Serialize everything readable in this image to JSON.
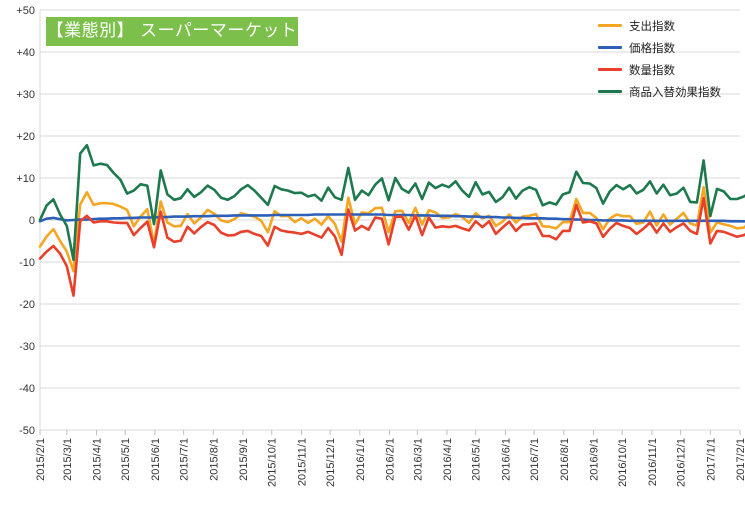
{
  "chart_data": {
    "type": "line",
    "title": "【業態別】 スーパーマーケット",
    "ylim": [
      -50,
      50
    ],
    "yticks": [
      50,
      40,
      30,
      20,
      10,
      0,
      -10,
      -20,
      -30,
      -40,
      -50
    ],
    "ytick_labels": [
      "+50",
      "+40",
      "+30",
      "+20",
      "+10",
      "0",
      "-10",
      "-20",
      "-30",
      "-40",
      "-50"
    ],
    "x": [
      "2015/2/1",
      "2015/2/8",
      "2015/2/15",
      "2015/2/22",
      "2015/3/1",
      "2015/3/8",
      "2015/3/15",
      "2015/3/22",
      "2015/3/29",
      "2015/4/5",
      "2015/4/12",
      "2015/4/19",
      "2015/4/26",
      "2015/5/3",
      "2015/5/10",
      "2015/5/17",
      "2015/5/24",
      "2015/5/31",
      "2015/6/7",
      "2015/6/14",
      "2015/6/21",
      "2015/6/28",
      "2015/7/5",
      "2015/7/12",
      "2015/7/19",
      "2015/7/26",
      "2015/8/2",
      "2015/8/9",
      "2015/8/16",
      "2015/8/23",
      "2015/8/30",
      "2015/9/6",
      "2015/9/13",
      "2015/9/20",
      "2015/9/27",
      "2015/10/4",
      "2015/10/11",
      "2015/10/18",
      "2015/10/25",
      "2015/11/1",
      "2015/11/8",
      "2015/11/15",
      "2015/11/22",
      "2015/11/29",
      "2015/12/6",
      "2015/12/13",
      "2015/12/20",
      "2015/12/27",
      "2016/1/3",
      "2016/1/10",
      "2016/1/17",
      "2016/1/24",
      "2016/1/31",
      "2016/2/7",
      "2016/2/14",
      "2016/2/21",
      "2016/2/28",
      "2016/3/6",
      "2016/3/13",
      "2016/3/20",
      "2016/3/27",
      "2016/4/3",
      "2016/4/10",
      "2016/4/17",
      "2016/4/24",
      "2016/5/1",
      "2016/5/8",
      "2016/5/15",
      "2016/5/22",
      "2016/5/29",
      "2016/6/5",
      "2016/6/12",
      "2016/6/19",
      "2016/6/26",
      "2016/7/3",
      "2016/7/10",
      "2016/7/17",
      "2016/7/24",
      "2016/7/31",
      "2016/8/7",
      "2016/8/14",
      "2016/8/21",
      "2016/8/28",
      "2016/9/4",
      "2016/9/11",
      "2016/9/18",
      "2016/9/25",
      "2016/10/2",
      "2016/10/9",
      "2016/10/16",
      "2016/10/23",
      "2016/10/30",
      "2016/11/6",
      "2016/11/13",
      "2016/11/20",
      "2016/11/27",
      "2016/12/4",
      "2016/12/11",
      "2016/12/18",
      "2016/12/25",
      "2017/1/1",
      "2017/1/8",
      "2017/1/15",
      "2017/1/22",
      "2017/1/29",
      "2017/2/5",
      "2017/2/12"
    ],
    "x_tick_labels": [
      "2015/2/1",
      "2015/3/1",
      "2015/4/1",
      "2015/5/1",
      "2015/6/1",
      "2015/7/1",
      "2015/8/1",
      "2015/9/1",
      "2015/10/1",
      "2015/11/1",
      "2015/12/1",
      "2016/1/1",
      "2016/2/1",
      "2016/3/1",
      "2016/4/1",
      "2016/5/1",
      "2016/6/1",
      "2016/7/1",
      "2016/8/1",
      "2016/9/1",
      "2016/10/1",
      "2016/11/1",
      "2016/12/1",
      "2017/1/1",
      "2017/2/1"
    ],
    "grid": true,
    "legend_position": "top-right",
    "series": [
      {
        "name": "支出指数",
        "color": "#f5a623",
        "values": [
          -6.3,
          -3.9,
          -2.2,
          -5.0,
          -7.5,
          -12.2,
          3.7,
          6.6,
          3.6,
          4.0,
          4.0,
          3.8,
          3.2,
          2.4,
          -1.5,
          0.8,
          2.6,
          -5.7,
          4.4,
          -0.6,
          -1.5,
          -1.4,
          1.4,
          -0.8,
          0.6,
          2.4,
          1.5,
          -0.1,
          -0.5,
          0.2,
          1.6,
          1.2,
          0.8,
          -0.2,
          -2.9,
          2.1,
          0.9,
          1.0,
          -0.5,
          0.4,
          -0.7,
          0.3,
          -1.1,
          0.9,
          -0.9,
          -5.2,
          5.3,
          -1.0,
          1.8,
          1.6,
          2.8,
          2.9,
          -2.9,
          2.1,
          2.2,
          -0.7,
          2.9,
          -1.1,
          2.3,
          1.8,
          0.5,
          0.6,
          1.4,
          0.7,
          -0.7,
          1.6,
          0.4,
          1.0,
          -1.4,
          -0.4,
          1.3,
          -0.6,
          0.8,
          1.0,
          1.4,
          -1.5,
          -1.6,
          -2.0,
          -0.5,
          -0.5,
          5.0,
          1.7,
          1.7,
          0.5,
          -2.2,
          0.3,
          1.3,
          0.9,
          0.9,
          -0.9,
          -0.6,
          2.0,
          -1.3,
          1.3,
          -1.1,
          0.3,
          1.7,
          -0.8,
          -1.3,
          7.8,
          -3.0,
          -0.6,
          -1.0,
          -1.4,
          -2.0,
          -1.8,
          -0.6
        ]
      },
      {
        "name": "価格指数",
        "color": "#2e5fb8",
        "values": [
          -0.3,
          0.3,
          0.5,
          0.2,
          -0.1,
          0.0,
          0.1,
          0.1,
          0.2,
          0.3,
          0.3,
          0.4,
          0.4,
          0.5,
          0.5,
          0.6,
          0.6,
          0.6,
          0.7,
          0.7,
          0.8,
          0.8,
          0.8,
          0.9,
          0.9,
          0.9,
          1.0,
          1.0,
          1.0,
          1.1,
          1.1,
          1.1,
          1.1,
          1.1,
          1.1,
          1.2,
          1.2,
          1.2,
          1.2,
          1.2,
          1.2,
          1.3,
          1.3,
          1.3,
          1.3,
          1.3,
          1.3,
          1.3,
          1.3,
          1.3,
          1.3,
          1.3,
          1.2,
          1.2,
          1.2,
          1.2,
          1.1,
          1.1,
          1.1,
          1.0,
          1.0,
          1.0,
          0.9,
          0.9,
          0.8,
          0.8,
          0.7,
          0.7,
          0.7,
          0.6,
          0.6,
          0.5,
          0.5,
          0.4,
          0.4,
          0.4,
          0.3,
          0.3,
          0.2,
          0.2,
          0.1,
          0.1,
          0.0,
          0.0,
          -0.1,
          -0.1,
          -0.1,
          -0.1,
          -0.2,
          -0.2,
          -0.2,
          -0.2,
          -0.2,
          -0.2,
          -0.2,
          -0.2,
          -0.2,
          -0.2,
          -0.2,
          -0.2,
          -0.2,
          -0.2,
          -0.2,
          -0.3,
          -0.3,
          -0.3,
          -0.4
        ]
      },
      {
        "name": "数量指数",
        "color": "#e8402a",
        "values": [
          -9.2,
          -7.5,
          -6.2,
          -8.0,
          -11.0,
          -18.0,
          -0.3,
          1.0,
          -0.6,
          -0.3,
          -0.3,
          -0.6,
          -0.7,
          -0.7,
          -3.6,
          -1.9,
          -0.4,
          -6.5,
          2.0,
          -4.2,
          -5.2,
          -4.9,
          -1.6,
          -3.2,
          -1.7,
          -0.5,
          -1.2,
          -3.0,
          -3.7,
          -3.6,
          -2.8,
          -2.6,
          -3.3,
          -3.8,
          -6.1,
          -1.6,
          -2.5,
          -2.8,
          -3.0,
          -3.3,
          -2.8,
          -3.5,
          -4.2,
          -1.9,
          -3.9,
          -8.3,
          2.5,
          -2.5,
          -1.4,
          -2.3,
          0.6,
          0.3,
          -5.8,
          0.7,
          0.8,
          -2.3,
          1.1,
          -3.6,
          0.6,
          -1.8,
          -1.5,
          -1.7,
          -1.4,
          -2.0,
          -2.5,
          -0.3,
          -1.7,
          -0.3,
          -3.3,
          -1.8,
          -0.4,
          -2.6,
          -1.1,
          -1.0,
          -0.8,
          -3.8,
          -3.8,
          -4.6,
          -2.6,
          -2.6,
          3.6,
          -0.6,
          -0.3,
          -0.8,
          -4.0,
          -2.1,
          -0.7,
          -1.4,
          -1.9,
          -3.3,
          -2.1,
          -0.6,
          -3.0,
          -0.8,
          -2.8,
          -1.7,
          -0.8,
          -2.6,
          -3.3,
          5.2,
          -5.6,
          -2.6,
          -2.8,
          -3.4,
          -4.0,
          -3.6,
          -2.9
        ]
      },
      {
        "name": "商品入替効果指数",
        "color": "#1e7a4e",
        "values": [
          0.0,
          3.5,
          4.9,
          1.3,
          -1.4,
          -9.5,
          15.8,
          17.8,
          13.0,
          13.4,
          13.1,
          11.2,
          9.6,
          6.3,
          7.0,
          8.5,
          8.2,
          -1.0,
          11.8,
          6.1,
          4.8,
          5.2,
          7.3,
          5.5,
          6.6,
          8.2,
          7.2,
          5.3,
          4.8,
          5.7,
          7.3,
          8.3,
          7.0,
          5.3,
          3.6,
          8.1,
          7.3,
          7.0,
          6.4,
          6.5,
          5.6,
          6.0,
          4.6,
          7.7,
          5.4,
          4.8,
          12.4,
          4.8,
          7.0,
          5.9,
          8.4,
          9.9,
          4.7,
          10.0,
          7.4,
          6.5,
          8.7,
          5.0,
          8.9,
          7.6,
          8.4,
          7.8,
          9.2,
          7.0,
          5.5,
          9.0,
          6.1,
          6.7,
          4.3,
          5.4,
          7.7,
          5.1,
          7.0,
          7.8,
          7.2,
          3.5,
          4.2,
          3.7,
          6.1,
          6.6,
          11.5,
          8.8,
          8.7,
          7.6,
          3.9,
          6.8,
          8.3,
          7.3,
          8.3,
          6.3,
          7.2,
          9.2,
          6.3,
          8.4,
          5.9,
          6.3,
          7.7,
          4.3,
          4.2,
          14.2,
          0.9,
          7.4,
          6.8,
          5.0,
          5.0,
          5.6,
          6.6
        ]
      }
    ]
  }
}
